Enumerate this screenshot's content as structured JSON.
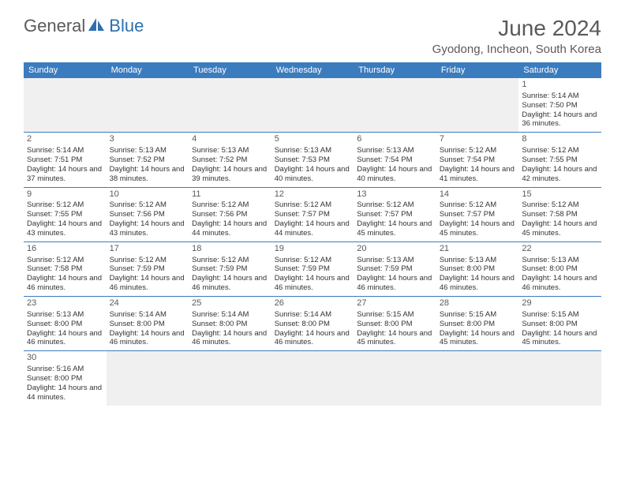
{
  "logo": {
    "text1": "General",
    "text2": "Blue"
  },
  "title": "June 2024",
  "location": "Gyodong, Incheon, South Korea",
  "dayHeaders": [
    "Sunday",
    "Monday",
    "Tuesday",
    "Wednesday",
    "Thursday",
    "Friday",
    "Saturday"
  ],
  "colors": {
    "headerBg": "#3b7cbf",
    "headerText": "#ffffff",
    "emptyBg": "#f0f0f0",
    "borderColor": "#3b7cbf",
    "titleColor": "#5a5a5a",
    "logoBlue": "#2e6fb0"
  },
  "weeks": [
    [
      null,
      null,
      null,
      null,
      null,
      null,
      {
        "d": "1",
        "sr": "5:14 AM",
        "ss": "7:50 PM",
        "dl": "14 hours and 36 minutes."
      }
    ],
    [
      {
        "d": "2",
        "sr": "5:14 AM",
        "ss": "7:51 PM",
        "dl": "14 hours and 37 minutes."
      },
      {
        "d": "3",
        "sr": "5:13 AM",
        "ss": "7:52 PM",
        "dl": "14 hours and 38 minutes."
      },
      {
        "d": "4",
        "sr": "5:13 AM",
        "ss": "7:52 PM",
        "dl": "14 hours and 39 minutes."
      },
      {
        "d": "5",
        "sr": "5:13 AM",
        "ss": "7:53 PM",
        "dl": "14 hours and 40 minutes."
      },
      {
        "d": "6",
        "sr": "5:13 AM",
        "ss": "7:54 PM",
        "dl": "14 hours and 40 minutes."
      },
      {
        "d": "7",
        "sr": "5:12 AM",
        "ss": "7:54 PM",
        "dl": "14 hours and 41 minutes."
      },
      {
        "d": "8",
        "sr": "5:12 AM",
        "ss": "7:55 PM",
        "dl": "14 hours and 42 minutes."
      }
    ],
    [
      {
        "d": "9",
        "sr": "5:12 AM",
        "ss": "7:55 PM",
        "dl": "14 hours and 43 minutes."
      },
      {
        "d": "10",
        "sr": "5:12 AM",
        "ss": "7:56 PM",
        "dl": "14 hours and 43 minutes."
      },
      {
        "d": "11",
        "sr": "5:12 AM",
        "ss": "7:56 PM",
        "dl": "14 hours and 44 minutes."
      },
      {
        "d": "12",
        "sr": "5:12 AM",
        "ss": "7:57 PM",
        "dl": "14 hours and 44 minutes."
      },
      {
        "d": "13",
        "sr": "5:12 AM",
        "ss": "7:57 PM",
        "dl": "14 hours and 45 minutes."
      },
      {
        "d": "14",
        "sr": "5:12 AM",
        "ss": "7:57 PM",
        "dl": "14 hours and 45 minutes."
      },
      {
        "d": "15",
        "sr": "5:12 AM",
        "ss": "7:58 PM",
        "dl": "14 hours and 45 minutes."
      }
    ],
    [
      {
        "d": "16",
        "sr": "5:12 AM",
        "ss": "7:58 PM",
        "dl": "14 hours and 46 minutes."
      },
      {
        "d": "17",
        "sr": "5:12 AM",
        "ss": "7:59 PM",
        "dl": "14 hours and 46 minutes."
      },
      {
        "d": "18",
        "sr": "5:12 AM",
        "ss": "7:59 PM",
        "dl": "14 hours and 46 minutes."
      },
      {
        "d": "19",
        "sr": "5:12 AM",
        "ss": "7:59 PM",
        "dl": "14 hours and 46 minutes."
      },
      {
        "d": "20",
        "sr": "5:13 AM",
        "ss": "7:59 PM",
        "dl": "14 hours and 46 minutes."
      },
      {
        "d": "21",
        "sr": "5:13 AM",
        "ss": "8:00 PM",
        "dl": "14 hours and 46 minutes."
      },
      {
        "d": "22",
        "sr": "5:13 AM",
        "ss": "8:00 PM",
        "dl": "14 hours and 46 minutes."
      }
    ],
    [
      {
        "d": "23",
        "sr": "5:13 AM",
        "ss": "8:00 PM",
        "dl": "14 hours and 46 minutes."
      },
      {
        "d": "24",
        "sr": "5:14 AM",
        "ss": "8:00 PM",
        "dl": "14 hours and 46 minutes."
      },
      {
        "d": "25",
        "sr": "5:14 AM",
        "ss": "8:00 PM",
        "dl": "14 hours and 46 minutes."
      },
      {
        "d": "26",
        "sr": "5:14 AM",
        "ss": "8:00 PM",
        "dl": "14 hours and 46 minutes."
      },
      {
        "d": "27",
        "sr": "5:15 AM",
        "ss": "8:00 PM",
        "dl": "14 hours and 45 minutes."
      },
      {
        "d": "28",
        "sr": "5:15 AM",
        "ss": "8:00 PM",
        "dl": "14 hours and 45 minutes."
      },
      {
        "d": "29",
        "sr": "5:15 AM",
        "ss": "8:00 PM",
        "dl": "14 hours and 45 minutes."
      }
    ],
    [
      {
        "d": "30",
        "sr": "5:16 AM",
        "ss": "8:00 PM",
        "dl": "14 hours and 44 minutes."
      },
      null,
      null,
      null,
      null,
      null,
      null
    ]
  ],
  "labels": {
    "sunrise": "Sunrise: ",
    "sunset": "Sunset: ",
    "daylight": "Daylight: "
  }
}
